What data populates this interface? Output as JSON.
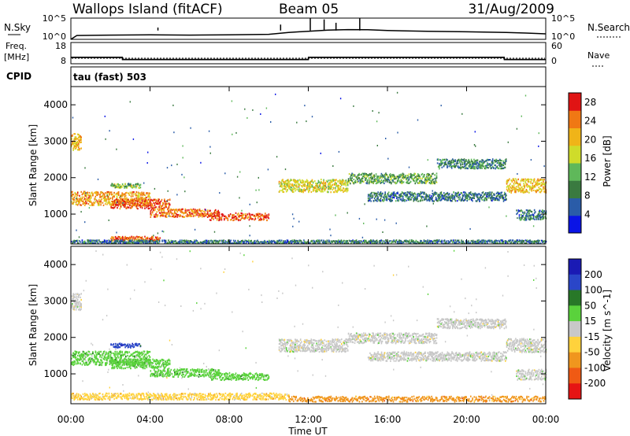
{
  "header": {
    "site": "Wallops Island (fitACF)",
    "beam": "Beam 05",
    "date": "31/Aug/2009"
  },
  "summary_panels": {
    "nsky_label": "N.Sky",
    "nsky_ticks": [
      "10^5",
      "10^0"
    ],
    "nsearch_label": "N.Search",
    "nsearch_ticks": [
      "10^5",
      "10^0"
    ],
    "freq_label_line1": "Freq.",
    "freq_label_line2": "[MHz]",
    "freq_ticks": [
      "18",
      "8"
    ],
    "nave_label": "Nave",
    "nave_ticks": [
      "60",
      "0"
    ],
    "cpid_label": "CPID",
    "cpid_value": "tau (fast) 503"
  },
  "colors": {
    "power": [
      "#0a14e6",
      "#2a5ca8",
      "#3a7a40",
      "#5fb85a",
      "#cfdc2a",
      "#f0b418",
      "#f07814",
      "#e01414"
    ],
    "velocity": [
      "#1a1ab4",
      "#2a46c8",
      "#287828",
      "#5ad23c",
      "#c8c8c8",
      "#ffd23c",
      "#f0961e",
      "#f05a14",
      "#e61414"
    ],
    "ground_scatter": "#c8c8c8"
  },
  "chart_data": [
    {
      "type": "line",
      "name": "summary",
      "x_unit": "hours UT",
      "series": [
        {
          "name": "N.Sky",
          "scale": "log",
          "ylim": [
            1,
            100000
          ],
          "x": [
            0,
            0.3,
            2,
            4,
            6,
            8,
            10,
            11,
            12,
            13,
            14,
            15,
            16,
            18,
            20,
            22,
            23,
            24
          ],
          "values": [
            1,
            8,
            10,
            12,
            10,
            12,
            15,
            40,
            80,
            150,
            200,
            180,
            120,
            80,
            60,
            40,
            30,
            20
          ]
        },
        {
          "name": "Freq.",
          "unit": "MHz",
          "ylim": [
            8,
            18
          ],
          "x": [
            0,
            2.6,
            2.61,
            12.0,
            12.01,
            21.9,
            21.91,
            24
          ],
          "values": [
            11,
            11,
            10,
            10,
            11,
            11,
            10,
            10
          ]
        },
        {
          "name": "Nave",
          "ylim": [
            0,
            60
          ],
          "x": [
            0,
            24
          ],
          "values": [
            20,
            20
          ]
        }
      ]
    },
    {
      "type": "heatmap",
      "name": "power",
      "xlabel": "Time UT",
      "ylabel": "Slant Range [km]",
      "xlim": [
        0,
        24
      ],
      "ylim": [
        180,
        4500
      ],
      "xticks": [
        "00:00",
        "04:00",
        "08:00",
        "12:00",
        "16:00",
        "20:00",
        "00:00"
      ],
      "yticks": [
        1000,
        2000,
        3000,
        4000
      ],
      "colorbar_label": "Power [dB]",
      "colorbar_ticks": [
        "4",
        "8",
        "12",
        "16",
        "20",
        "24",
        "28"
      ],
      "colorbar_range": [
        0,
        30
      ],
      "bands": [
        {
          "x": [
            0.0,
            0.5
          ],
          "y_center": 3000,
          "width": 450,
          "level": 20
        },
        {
          "x": [
            0.0,
            4.0
          ],
          "y_center": 1450,
          "width": 380,
          "level": 22
        },
        {
          "x": [
            2.0,
            5.0
          ],
          "y_center": 1300,
          "width": 260,
          "level": 26
        },
        {
          "x": [
            4.0,
            7.5
          ],
          "y_center": 1050,
          "width": 220,
          "level": 24
        },
        {
          "x": [
            7.0,
            10.0
          ],
          "y_center": 950,
          "width": 200,
          "level": 26
        },
        {
          "x": [
            2.0,
            3.5
          ],
          "y_center": 1800,
          "width": 120,
          "level": 14
        },
        {
          "x": [
            2.0,
            4.5
          ],
          "y_center": 350,
          "width": 110,
          "level": 26
        },
        {
          "x": [
            0.0,
            24.0
          ],
          "y_center": 260,
          "width": 90,
          "level": 8
        },
        {
          "x": [
            10.5,
            14.0
          ],
          "y_center": 1800,
          "width": 350,
          "level": 18
        },
        {
          "x": [
            14.0,
            18.5
          ],
          "y_center": 2000,
          "width": 280,
          "level": 12
        },
        {
          "x": [
            18.5,
            22.0
          ],
          "y_center": 2400,
          "width": 260,
          "level": 9
        },
        {
          "x": [
            15.0,
            22.0
          ],
          "y_center": 1500,
          "width": 250,
          "level": 8
        },
        {
          "x": [
            22.0,
            24.0
          ],
          "y_center": 1800,
          "width": 380,
          "level": 20
        },
        {
          "x": [
            22.5,
            24.0
          ],
          "y_center": 1000,
          "width": 280,
          "level": 8
        }
      ]
    },
    {
      "type": "heatmap",
      "name": "velocity",
      "xlabel": "Time UT",
      "ylabel": "Slant Range [km]",
      "xlim": [
        0,
        24
      ],
      "ylim": [
        180,
        4500
      ],
      "xticks": [
        "00:00",
        "04:00",
        "08:00",
        "12:00",
        "16:00",
        "20:00",
        "00:00"
      ],
      "yticks": [
        1000,
        2000,
        3000,
        4000
      ],
      "colorbar_label": "Velocity [m s^-1]",
      "colorbar_ticks": [
        "200",
        "100",
        "50",
        "15",
        "-15",
        "-50",
        "-100",
        "-200"
      ],
      "bands": [
        {
          "x": [
            0.0,
            0.5
          ],
          "y_center": 3000,
          "width": 450,
          "cls": 4
        },
        {
          "x": [
            0.0,
            4.0
          ],
          "y_center": 1450,
          "width": 380,
          "cls": 3
        },
        {
          "x": [
            2.0,
            5.0
          ],
          "y_center": 1300,
          "width": 260,
          "cls": 3
        },
        {
          "x": [
            4.0,
            7.5
          ],
          "y_center": 1050,
          "width": 220,
          "cls": 3
        },
        {
          "x": [
            7.0,
            10.0
          ],
          "y_center": 950,
          "width": 200,
          "cls": 3
        },
        {
          "x": [
            2.0,
            3.5
          ],
          "y_center": 1800,
          "width": 120,
          "cls": 1
        },
        {
          "x": [
            0.0,
            11.0
          ],
          "y_center": 400,
          "width": 180,
          "cls": 5
        },
        {
          "x": [
            11.0,
            24.0
          ],
          "y_center": 330,
          "width": 150,
          "cls": 6
        },
        {
          "x": [
            10.5,
            14.0
          ],
          "y_center": 1800,
          "width": 350,
          "cls": 4
        },
        {
          "x": [
            14.0,
            18.5
          ],
          "y_center": 2000,
          "width": 280,
          "cls": 4
        },
        {
          "x": [
            18.5,
            22.0
          ],
          "y_center": 2400,
          "width": 260,
          "cls": 4
        },
        {
          "x": [
            15.0,
            22.0
          ],
          "y_center": 1500,
          "width": 250,
          "cls": 4
        },
        {
          "x": [
            22.0,
            24.0
          ],
          "y_center": 1800,
          "width": 380,
          "cls": 4
        },
        {
          "x": [
            22.5,
            24.0
          ],
          "y_center": 1000,
          "width": 280,
          "cls": 4
        }
      ]
    }
  ]
}
